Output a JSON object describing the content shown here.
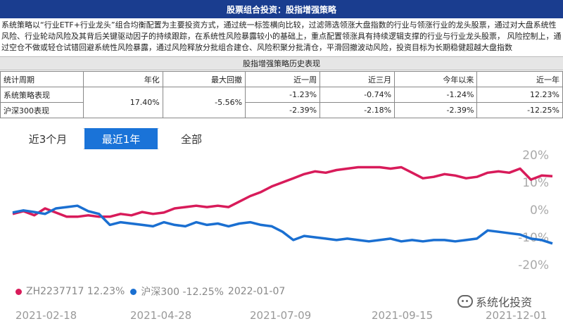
{
  "header": {
    "title": "股票组合投资：股指增强策略"
  },
  "description": "系统策略以“行业ETF+行业龙头”组合均衡配置为主要投资方式，通过统一标签横向比较，过滤筛选领涨大盘指数的行业与领涨行业的龙头股票，通过对大盘系统性风险、行业轮动风险及其背后关键驱动因子的持续跟踪，在系统性风险暴露较小的基础上，重点配置领涨具有持续逻辑支撑的行业与行业龙头股票， 风险控制上，通过空仓不做或轻仓试错回避系统性风险暴露，通过风险释放分批组合建仓、风险积聚分批清仓，平滑回撤波动风险，投资目标为长期稳健超越大盘指数",
  "history_table": {
    "title": "股指增强策略历史表现",
    "headers": [
      "统计周期",
      "年化",
      "最大回撤",
      "近一周",
      "近三月",
      "今年以来",
      "近一年"
    ],
    "rows": [
      {
        "label": "系统策略表现",
        "week": "-1.23%",
        "three_month": "-0.74%",
        "ytd": "-1.24%",
        "year": "12.23%"
      },
      {
        "label": "沪深300表现",
        "week": "-2.39%",
        "three_month": "-2.18%",
        "ytd": "-2.39%",
        "year": "-12.25%"
      }
    ],
    "annualized": "17.40%",
    "max_drawdown": "-5.56%"
  },
  "chart_tabs": [
    {
      "label": "近3个月",
      "active": false
    },
    {
      "label": "最近1年",
      "active": true
    },
    {
      "label": "全部",
      "active": false
    }
  ],
  "legend": {
    "series1_text": "ZH2237717 12.23%",
    "series2_text": "沪深300 -12.25%",
    "date": "2022-01-07"
  },
  "watermark": "系统化投资",
  "chart_data": {
    "type": "line",
    "x_ticks": [
      "2021-02-18",
      "2021-04-28",
      "2021-07-09",
      "2021-09-15",
      "2021-12-01"
    ],
    "y_ticks": [
      "20%",
      "10%",
      "0%",
      "-10%",
      "-20%"
    ],
    "ylim": [
      -20,
      20
    ],
    "unit": "%",
    "colors": {
      "series1": "#d81b5a",
      "series2": "#1a6fd1"
    },
    "series": [
      {
        "name": "ZH2237717",
        "values": [
          -1.5,
          -0.5,
          -2.0,
          0.5,
          -1.0,
          -2.5,
          -2.5,
          -2.0,
          -2.5,
          -2.5,
          -1.5,
          -2.0,
          -0.8,
          -1.5,
          -1.0,
          0.5,
          1.0,
          1.5,
          1.0,
          1.5,
          1.0,
          3.0,
          5.0,
          6.5,
          8.5,
          10.0,
          11.5,
          13.0,
          14.0,
          13.5,
          14.5,
          15.0,
          15.5,
          15.5,
          15.5,
          15.0,
          15.5,
          13.5,
          11.5,
          12.0,
          13.0,
          12.5,
          11.5,
          12.0,
          13.5,
          14.0,
          13.5,
          15.0,
          11.0,
          12.5,
          12.23
        ]
      },
      {
        "name": "沪深300",
        "values": [
          -1.0,
          -0.2,
          -0.8,
          -1.5,
          0.5,
          1.0,
          1.5,
          -0.5,
          -1.5,
          -5.5,
          -4.5,
          -5.0,
          -5.5,
          -6.0,
          -4.5,
          -5.5,
          -6.0,
          -4.5,
          -5.5,
          -5.0,
          -6.0,
          -5.0,
          -4.5,
          -5.5,
          -6.0,
          -8.0,
          -11.0,
          -9.5,
          -10.0,
          -10.5,
          -11.0,
          -10.5,
          -11.0,
          -11.5,
          -11.0,
          -10.5,
          -11.5,
          -11.0,
          -11.5,
          -11.0,
          -11.0,
          -11.5,
          -11.0,
          -10.5,
          -7.5,
          -8.0,
          -8.5,
          -9.0,
          -10.5,
          -11.0,
          -12.25
        ]
      }
    ]
  }
}
